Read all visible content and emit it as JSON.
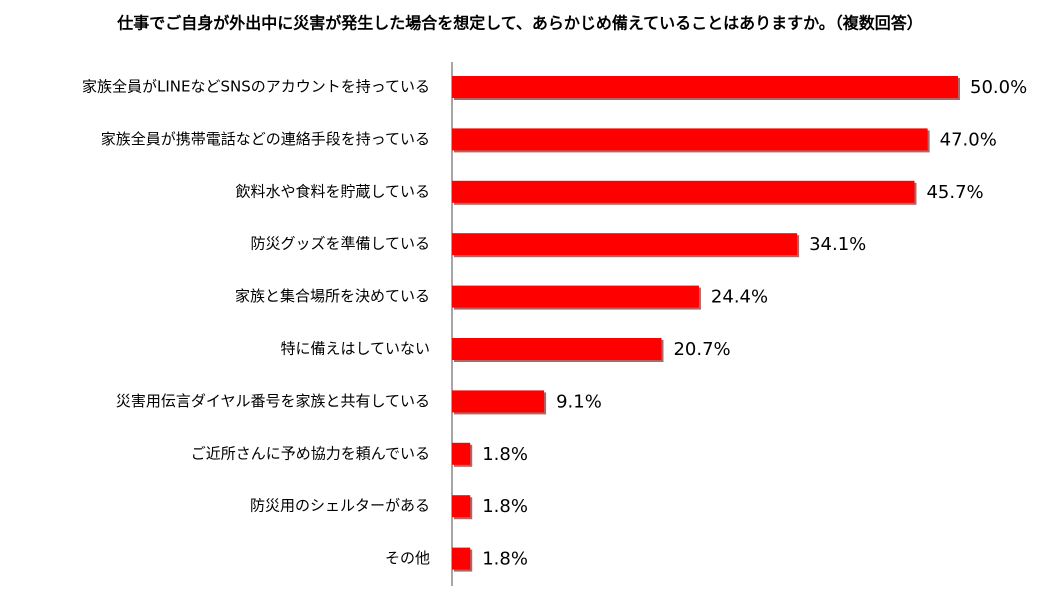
{
  "chart_data": {
    "type": "bar",
    "orientation": "horizontal",
    "title": "仕事でご自身が外出中に災害が発生した場合を想定して、あらかじめ備えていることはありますか。（複数回答）",
    "categories": [
      "家族全員がLINEなどSNSのアカウントを持っている",
      "家族全員が携帯電話などの連絡手段を持っている",
      "飲料水や食料を貯蔵している",
      "防災グッズを準備している",
      "家族と集合場所を決めている",
      "特に備えはしていない",
      "災害用伝言ダイヤル番号を家族と共有している",
      "ご近所さんに予め協力を頼んでいる",
      "防災用のシェルターがある",
      "その他"
    ],
    "values": [
      50.0,
      47.0,
      45.7,
      34.1,
      24.4,
      20.7,
      9.1,
      1.8,
      1.8,
      1.8
    ],
    "value_labels": [
      "50.0%",
      "47.0%",
      "45.7%",
      "34.1%",
      "24.4%",
      "20.7%",
      "9.1%",
      "1.8%",
      "1.8%",
      "1.8%"
    ],
    "color": "#ff0000"
  }
}
